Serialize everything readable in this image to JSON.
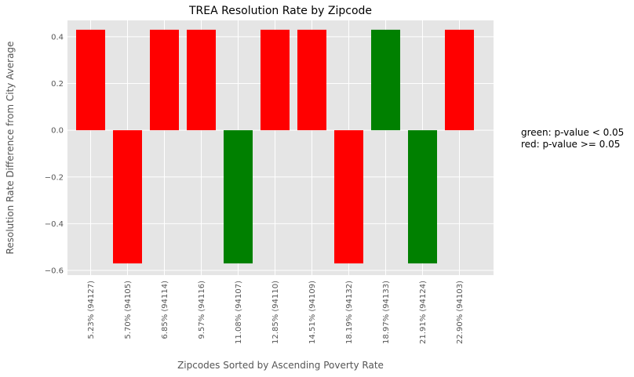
{
  "chart_data": {
    "type": "bar",
    "title": "TREA Resolution Rate by Zipcode",
    "xlabel": "Zipcodes Sorted by Ascending Poverty Rate",
    "ylabel": "Resolution Rate Difference from City Average",
    "categories": [
      "5.23%  (94127)",
      "5.70%  (94105)",
      "6.85%  (94114)",
      "9.57%  (94116)",
      "11.08%  (94107)",
      "12.85%  (94110)",
      "14.51%  (94109)",
      "18.19%  (94132)",
      "18.97%  (94133)",
      "21.91%  (94124)",
      "22.90%  (94103)"
    ],
    "values": [
      0.43,
      -0.57,
      0.43,
      0.43,
      -0.57,
      0.43,
      0.43,
      -0.57,
      0.43,
      -0.57,
      0.43
    ],
    "significant": [
      false,
      false,
      false,
      false,
      true,
      false,
      false,
      false,
      true,
      true,
      false
    ],
    "ylim": [
      -0.62,
      0.47
    ],
    "yticks": [
      -0.6,
      -0.4,
      -0.2,
      0.0,
      0.2,
      0.4
    ],
    "ytick_labels": [
      "−0.6",
      "−0.4",
      "−0.2",
      "0.0",
      "0.2",
      "0.4"
    ],
    "grid": true,
    "colors": {
      "significant": "#008000",
      "not_significant": "#ff0000",
      "plot_background": "#e5e5e5",
      "grid": "#ffffff"
    },
    "annotations": [
      "green: p-value < 0.05",
      "red: p-value >= 0.05"
    ]
  }
}
